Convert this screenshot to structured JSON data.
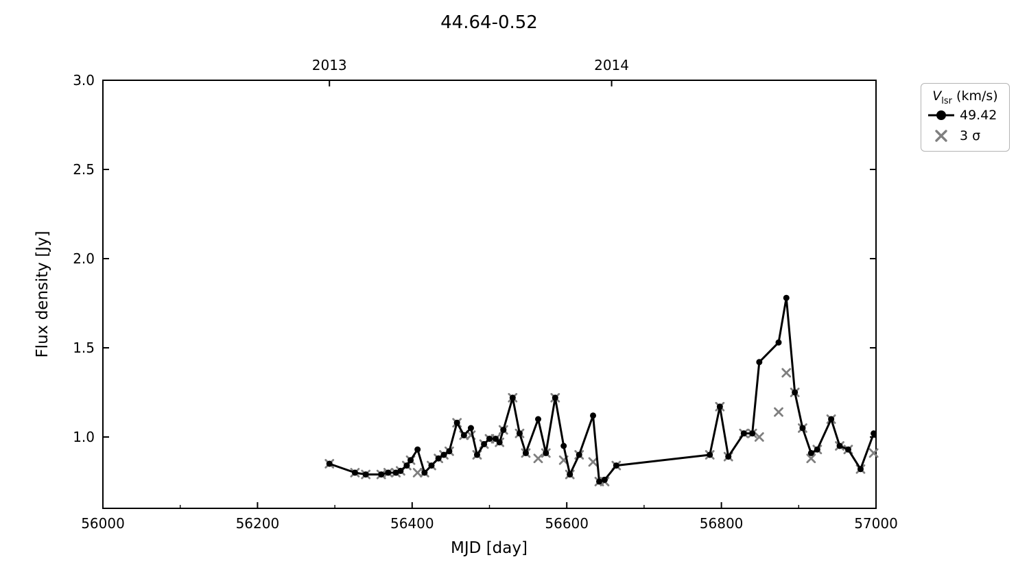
{
  "figure": {
    "title": "44.64-0.52",
    "background": "#ffffff"
  },
  "axes": {
    "xlabel": "MJD [day]",
    "ylabel": "Flux density [Jy]",
    "xlim": [
      56000,
      57000
    ],
    "ylim": [
      0.6,
      3.0
    ],
    "x_major_ticks": {
      "values": [
        56000,
        56200,
        56400,
        56600,
        56800,
        57000
      ],
      "labels": [
        "56000",
        "56200",
        "56400",
        "56600",
        "56800",
        "57000"
      ]
    },
    "x_minor_ticks": [
      56100,
      56300,
      56500,
      56700,
      56900
    ],
    "y_major_ticks": {
      "values": [
        1.0,
        1.5,
        2.0,
        2.5,
        3.0
      ],
      "labels": [
        "1.0",
        "1.5",
        "2.0",
        "2.5",
        "3.0"
      ]
    },
    "top_axis_ticks": {
      "values": [
        56293,
        56658
      ],
      "labels": [
        "2013",
        "2014"
      ]
    }
  },
  "legend": {
    "title_parts": {
      "symbol": "V",
      "subscript": "lsr",
      "unit": " (km/s)"
    },
    "entries": [
      {
        "label": "49.42",
        "marker": "line-circle",
        "color": "#000000"
      },
      {
        "label": "3 σ",
        "marker": "x",
        "color": "#7f7f7f"
      }
    ]
  },
  "chart_data": {
    "type": "line",
    "title": "44.64-0.52",
    "xlabel": "MJD [day]",
    "ylabel": "Flux density [Jy]",
    "xlim": [
      56000,
      57000
    ],
    "ylim": [
      0.6,
      3.0
    ],
    "grid": false,
    "legend_position": "outside-upper-right",
    "series": [
      {
        "name": "49.42",
        "marker": "circle",
        "line": true,
        "color": "#000000",
        "points": [
          [
            56293,
            0.85
          ],
          [
            56326,
            0.8
          ],
          [
            56340,
            0.79
          ],
          [
            56360,
            0.79
          ],
          [
            56369,
            0.8
          ],
          [
            56379,
            0.8
          ],
          [
            56385,
            0.81
          ],
          [
            56393,
            0.84
          ],
          [
            56398,
            0.87
          ],
          [
            56407,
            0.93
          ],
          [
            56416,
            0.8
          ],
          [
            56425,
            0.84
          ],
          [
            56434,
            0.88
          ],
          [
            56441,
            0.9
          ],
          [
            56448,
            0.92
          ],
          [
            56458,
            1.08
          ],
          [
            56467,
            1.01
          ],
          [
            56476,
            1.05
          ],
          [
            56484,
            0.9
          ],
          [
            56493,
            0.96
          ],
          [
            56500,
            0.99
          ],
          [
            56508,
            0.99
          ],
          [
            56513,
            0.97
          ],
          [
            56518,
            1.04
          ],
          [
            56530,
            1.22
          ],
          [
            56539,
            1.02
          ],
          [
            56547,
            0.91
          ],
          [
            56563,
            1.1
          ],
          [
            56573,
            0.91
          ],
          [
            56585,
            1.22
          ],
          [
            56596,
            0.95
          ],
          [
            56604,
            0.79
          ],
          [
            56616,
            0.9
          ],
          [
            56634,
            1.12
          ],
          [
            56642,
            0.75
          ],
          [
            56649,
            0.76
          ],
          [
            56664,
            0.84
          ],
          [
            56785,
            0.9
          ],
          [
            56798,
            1.17
          ],
          [
            56809,
            0.89
          ],
          [
            56829,
            1.02
          ],
          [
            56840,
            1.02
          ],
          [
            56849,
            1.42
          ],
          [
            56874,
            1.53
          ],
          [
            56884,
            1.78
          ],
          [
            56895,
            1.25
          ],
          [
            56905,
            1.05
          ],
          [
            56916,
            0.91
          ],
          [
            56924,
            0.93
          ],
          [
            56942,
            1.1
          ],
          [
            56953,
            0.95
          ],
          [
            56964,
            0.93
          ],
          [
            56980,
            0.82
          ],
          [
            56997,
            1.02
          ]
        ]
      },
      {
        "name": "3 σ",
        "marker": "x",
        "line": false,
        "color": "#7f7f7f",
        "points": [
          [
            56293,
            0.85
          ],
          [
            56326,
            0.8
          ],
          [
            56340,
            0.79
          ],
          [
            56360,
            0.79
          ],
          [
            56369,
            0.8
          ],
          [
            56379,
            0.8
          ],
          [
            56385,
            0.81
          ],
          [
            56393,
            0.84
          ],
          [
            56398,
            0.87
          ],
          [
            56407,
            0.8
          ],
          [
            56416,
            0.8
          ],
          [
            56425,
            0.84
          ],
          [
            56434,
            0.88
          ],
          [
            56441,
            0.9
          ],
          [
            56448,
            0.92
          ],
          [
            56458,
            1.08
          ],
          [
            56467,
            1.01
          ],
          [
            56476,
            1.01
          ],
          [
            56484,
            0.9
          ],
          [
            56493,
            0.96
          ],
          [
            56500,
            0.99
          ],
          [
            56508,
            0.99
          ],
          [
            56513,
            0.97
          ],
          [
            56518,
            1.04
          ],
          [
            56530,
            1.22
          ],
          [
            56539,
            1.02
          ],
          [
            56547,
            0.91
          ],
          [
            56563,
            0.88
          ],
          [
            56573,
            0.91
          ],
          [
            56585,
            1.22
          ],
          [
            56596,
            0.87
          ],
          [
            56604,
            0.79
          ],
          [
            56616,
            0.9
          ],
          [
            56634,
            0.86
          ],
          [
            56642,
            0.75
          ],
          [
            56649,
            0.75
          ],
          [
            56664,
            0.84
          ],
          [
            56785,
            0.9
          ],
          [
            56798,
            1.17
          ],
          [
            56809,
            0.89
          ],
          [
            56829,
            1.02
          ],
          [
            56840,
            1.02
          ],
          [
            56849,
            1.0
          ],
          [
            56874,
            1.14
          ],
          [
            56884,
            1.36
          ],
          [
            56895,
            1.25
          ],
          [
            56905,
            1.05
          ],
          [
            56916,
            0.88
          ],
          [
            56924,
            0.93
          ],
          [
            56942,
            1.1
          ],
          [
            56953,
            0.95
          ],
          [
            56964,
            0.93
          ],
          [
            56980,
            0.82
          ],
          [
            56997,
            0.91
          ]
        ]
      }
    ]
  }
}
